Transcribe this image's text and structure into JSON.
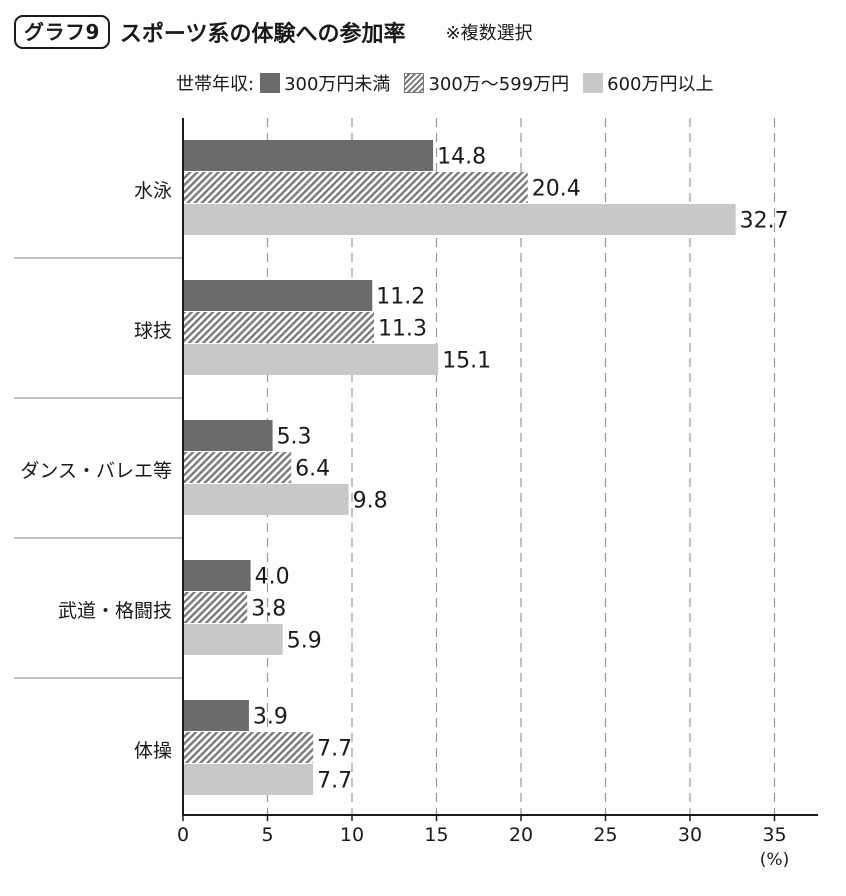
{
  "header": {
    "badge": "グラフ9",
    "title": "スポーツ系の体験への参加率",
    "note": "※複数選択"
  },
  "legend": {
    "prefix": "世帯年収:",
    "items": [
      {
        "label": "300万円未満"
      },
      {
        "label": "300万〜599万円"
      },
      {
        "label": "600万円以上"
      }
    ]
  },
  "colors": {
    "dark": "#6b6b6b",
    "hatch": "#7a7a7a",
    "light": "#c8c8c8",
    "grid": "#9a9a9a",
    "divider": "#a0a0a0"
  },
  "chart_data": {
    "type": "bar",
    "orientation": "horizontal",
    "categories": [
      "水泳",
      "球技",
      "ダンス・バレエ等",
      "武道・格闘技",
      "体操"
    ],
    "series": [
      {
        "name": "300万円未満",
        "values": [
          14.8,
          11.2,
          5.3,
          4.0,
          3.9
        ],
        "labels": [
          "14.8",
          "11.2",
          "5.3",
          "4.0",
          "3.9"
        ]
      },
      {
        "name": "300万〜599万円",
        "values": [
          20.4,
          11.3,
          6.4,
          3.8,
          7.7
        ],
        "labels": [
          "20.4",
          "11.3",
          "6.4",
          "3.8",
          "7.7"
        ]
      },
      {
        "name": "600万円以上",
        "values": [
          32.7,
          15.1,
          9.8,
          5.9,
          7.7
        ],
        "labels": [
          "32.7",
          "15.1",
          "9.8",
          "5.9",
          "7.7"
        ]
      }
    ],
    "xlim": [
      0,
      37
    ],
    "xticks": [
      0,
      5,
      10,
      15,
      20,
      25,
      30,
      35
    ],
    "xunit": "(%)",
    "grid": "vertical-dashed",
    "legend_position": "top"
  }
}
